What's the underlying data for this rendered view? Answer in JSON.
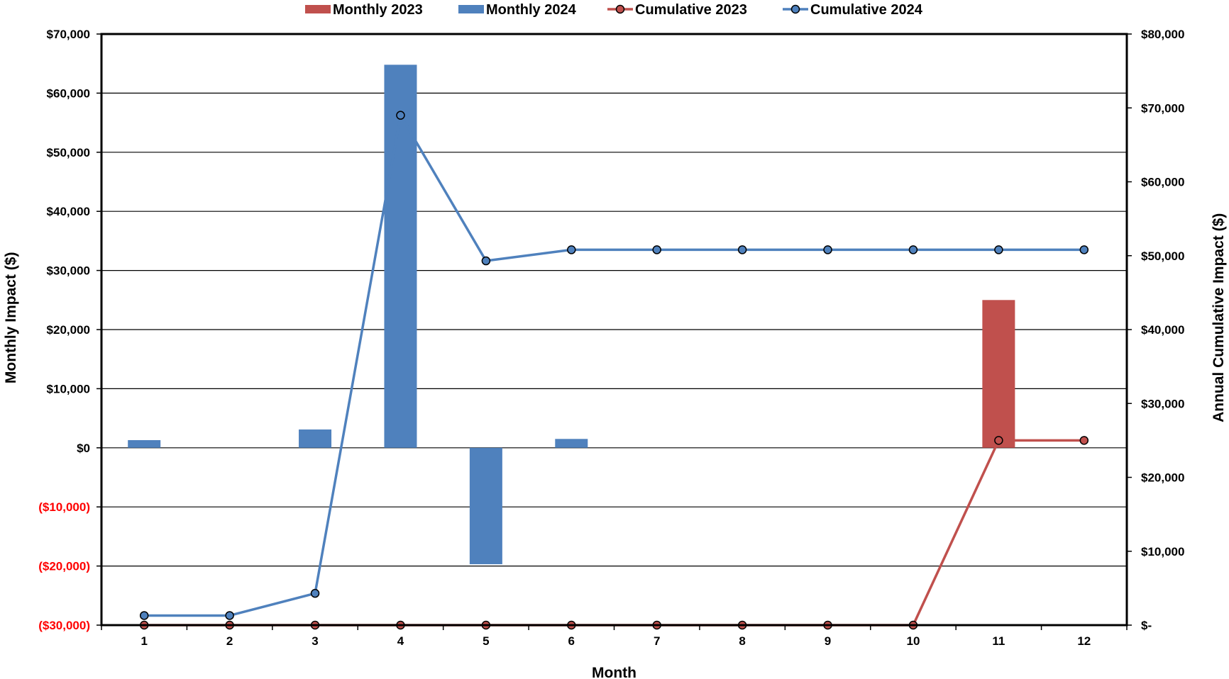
{
  "chart_data": {
    "type": "bar",
    "categories": [
      "1",
      "2",
      "3",
      "4",
      "5",
      "6",
      "7",
      "8",
      "9",
      "10",
      "11",
      "12"
    ],
    "xlabel": "Month",
    "ylabel": "Monthly Impact ($)",
    "y2label": "Annual Cumulative Impact ($)",
    "ylim": [
      -30000,
      70000
    ],
    "y2lim": [
      0,
      80000
    ],
    "left_ticks": [
      {
        "value": 70000,
        "label": "$70,000"
      },
      {
        "value": 60000,
        "label": "$60,000"
      },
      {
        "value": 50000,
        "label": "$50,000"
      },
      {
        "value": 40000,
        "label": "$40,000"
      },
      {
        "value": 30000,
        "label": "$30,000"
      },
      {
        "value": 20000,
        "label": "$20,000"
      },
      {
        "value": 10000,
        "label": "$10,000"
      },
      {
        "value": 0,
        "label": "$0"
      },
      {
        "value": -10000,
        "label": "($10,000)"
      },
      {
        "value": -20000,
        "label": "($20,000)"
      },
      {
        "value": -30000,
        "label": "($30,000)"
      }
    ],
    "right_ticks": [
      {
        "value": 80000,
        "label": "$80,000"
      },
      {
        "value": 70000,
        "label": "$70,000"
      },
      {
        "value": 60000,
        "label": "$60,000"
      },
      {
        "value": 50000,
        "label": "$50,000"
      },
      {
        "value": 40000,
        "label": "$40,000"
      },
      {
        "value": 30000,
        "label": "$30,000"
      },
      {
        "value": 20000,
        "label": "$20,000"
      },
      {
        "value": 10000,
        "label": "$10,000"
      },
      {
        "value": 0,
        "label": "$-"
      }
    ],
    "negative_tick_color": "#ff0000",
    "grid": true,
    "legend_position": "top",
    "series": [
      {
        "name": "Monthly 2023",
        "kind": "bar",
        "axis": "left",
        "color": "#c0504d",
        "values": [
          0,
          0,
          0,
          0,
          0,
          0,
          0,
          0,
          0,
          0,
          25000,
          0
        ]
      },
      {
        "name": "Monthly 2024",
        "kind": "bar",
        "axis": "left",
        "color": "#4f81bd",
        "values": [
          1300,
          0,
          3100,
          64800,
          -19700,
          1500,
          0,
          0,
          0,
          0,
          0,
          0
        ]
      },
      {
        "name": "Cumulative 2023",
        "kind": "line",
        "axis": "right",
        "color": "#c0504d",
        "values": [
          0,
          0,
          0,
          0,
          0,
          0,
          0,
          0,
          0,
          0,
          25000,
          25000
        ]
      },
      {
        "name": "Cumulative 2024",
        "kind": "line",
        "axis": "right",
        "color": "#4f81bd",
        "values": [
          1300,
          1300,
          4300,
          69000,
          49300,
          50800,
          50800,
          50800,
          50800,
          50800,
          50800,
          50800
        ]
      }
    ]
  }
}
